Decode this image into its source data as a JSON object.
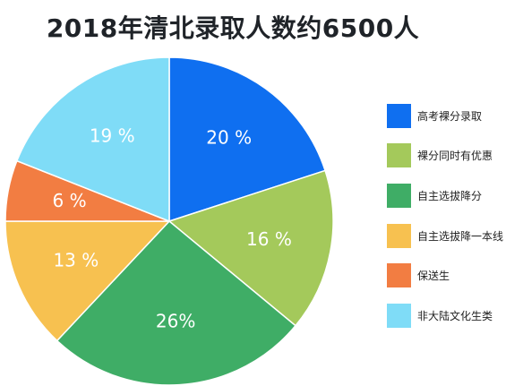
{
  "chart_data": {
    "type": "pie",
    "title": "2018年清北录取人数约6500人",
    "slices": [
      {
        "name": "高考裸分录取",
        "value": 20,
        "label": "20 %",
        "color": "#0f6ff0"
      },
      {
        "name": "裸分同时有优惠",
        "value": 16,
        "label": "16 %",
        "color": "#a4c95b"
      },
      {
        "name": "自主选拔降分",
        "value": 26,
        "label": "26%",
        "color": "#3fad66"
      },
      {
        "name": "自主选拔降一本线",
        "value": 13,
        "label": "13 %",
        "color": "#f7c150"
      },
      {
        "name": "保送生",
        "value": 6,
        "label": "6 %",
        "color": "#f27d42"
      },
      {
        "name": "非大陆文化生类",
        "value": 19,
        "label": "19 %",
        "color": "#7fdcf7"
      }
    ],
    "legend_position": "right"
  }
}
